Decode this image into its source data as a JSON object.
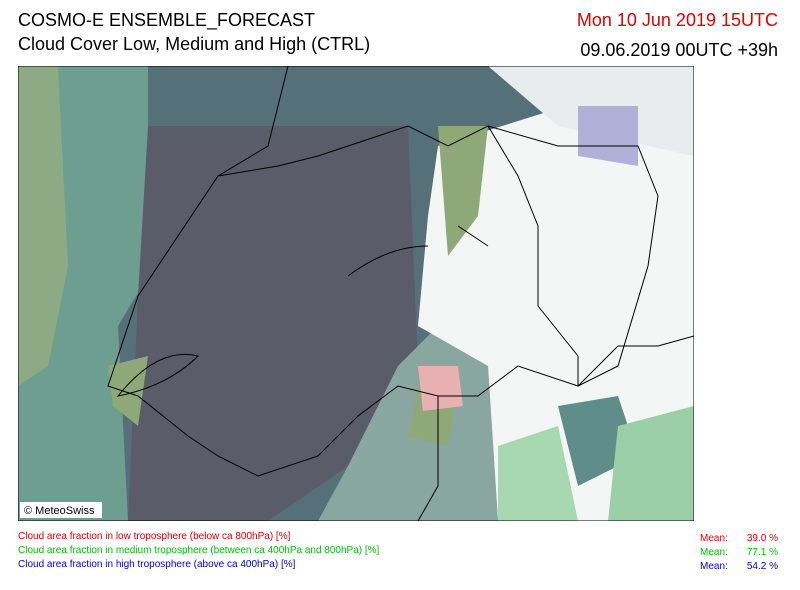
{
  "header": {
    "title": "COSMO-E ENSEMBLE_FORECAST",
    "subtitle": "Cloud Cover Low, Medium and High (CTRL)",
    "valid_time": "Mon 10 Jun 2019 15UTC",
    "run": "09.06.2019 00UTC +39h"
  },
  "map": {
    "copyright": "© MeteoSwiss"
  },
  "legend": [
    {
      "text": "Cloud area fraction in low troposphere (below ca 800hPa) [%]",
      "mean_label": "Mean:",
      "mean": "39.0 %"
    },
    {
      "text": "Cloud area fraction in medium troposphere (between ca 400hPa and 800hPa) [%]",
      "mean_label": "Mean:",
      "mean": "77.1 %"
    },
    {
      "text": "Cloud area fraction in high troposphere (above ca 400hPa) [%]",
      "mean_label": "Mean:",
      "mean": "54.2 %"
    }
  ]
}
